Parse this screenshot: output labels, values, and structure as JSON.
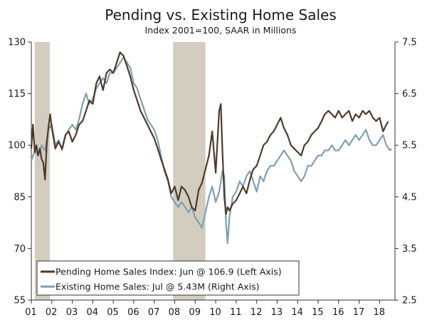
{
  "chart_data": {
    "type": "line",
    "title": "Pending vs. Existing Home Sales",
    "subtitle": "Index 2001=100, SAAR in Millions",
    "x_tick_labels": [
      "01",
      "02",
      "03",
      "04",
      "05",
      "06",
      "07",
      "08",
      "09",
      "10",
      "11",
      "12",
      "13",
      "14",
      "15",
      "16",
      "17",
      "18"
    ],
    "x_range": [
      2001.0,
      2018.75
    ],
    "left_axis": {
      "ticks": [
        55,
        70,
        85,
        100,
        115,
        130
      ],
      "range": [
        55,
        130
      ]
    },
    "right_axis": {
      "ticks": [
        2.5,
        3.5,
        4.5,
        5.5,
        6.5,
        7.5
      ],
      "range": [
        2.5,
        7.5
      ]
    },
    "recessions": [
      [
        2001.17,
        2001.9
      ],
      [
        2007.92,
        2009.5
      ]
    ],
    "series": [
      {
        "name": "Pending Home Sales Index",
        "legend": "Pending Home Sales Index: Jun @ 106.9 (Left Axis)",
        "axis": "left",
        "color": "#4e3a2c",
        "x": [
          2001.0,
          2001.08,
          2001.17,
          2001.25,
          2001.33,
          2001.42,
          2001.5,
          2001.58,
          2001.67,
          2001.75,
          2001.83,
          2001.92,
          2002.0,
          2002.17,
          2002.33,
          2002.5,
          2002.67,
          2002.83,
          2003.0,
          2003.17,
          2003.33,
          2003.5,
          2003.67,
          2003.83,
          2004.0,
          2004.17,
          2004.33,
          2004.5,
          2004.67,
          2004.83,
          2005.0,
          2005.17,
          2005.33,
          2005.5,
          2005.67,
          2005.83,
          2006.0,
          2006.17,
          2006.33,
          2006.5,
          2006.67,
          2006.83,
          2007.0,
          2007.17,
          2007.33,
          2007.5,
          2007.67,
          2007.83,
          2008.0,
          2008.17,
          2008.33,
          2008.5,
          2008.67,
          2008.83,
          2009.0,
          2009.17,
          2009.33,
          2009.5,
          2009.67,
          2009.83,
          2010.0,
          2010.17,
          2010.25,
          2010.33,
          2010.42,
          2010.5,
          2010.58,
          2010.67,
          2010.83,
          2011.0,
          2011.17,
          2011.33,
          2011.5,
          2011.67,
          2011.83,
          2012.0,
          2012.17,
          2012.33,
          2012.5,
          2012.67,
          2012.83,
          2013.0,
          2013.17,
          2013.33,
          2013.5,
          2013.67,
          2013.83,
          2014.0,
          2014.17,
          2014.33,
          2014.5,
          2014.67,
          2014.83,
          2015.0,
          2015.17,
          2015.33,
          2015.5,
          2015.67,
          2015.83,
          2016.0,
          2016.17,
          2016.33,
          2016.5,
          2016.67,
          2016.83,
          2017.0,
          2017.17,
          2017.33,
          2017.5,
          2017.67,
          2017.83,
          2018.0,
          2018.17,
          2018.33,
          2018.42
        ],
        "values": [
          99,
          106,
          98,
          100,
          97,
          99,
          96,
          95,
          90,
          100,
          105,
          109,
          105,
          99,
          101,
          99,
          103,
          104,
          101,
          103,
          106,
          107,
          110,
          113,
          112,
          118,
          120,
          116,
          121,
          122,
          121,
          124,
          127,
          126,
          123,
          120,
          116,
          113,
          110,
          108,
          106,
          104,
          102,
          99,
          96,
          93,
          90,
          86,
          88,
          84,
          88,
          87,
          85,
          82,
          81,
          87,
          89,
          93,
          97,
          104,
          92,
          110,
          112,
          98,
          85,
          80,
          82,
          81,
          83,
          84,
          86,
          88,
          86,
          90,
          93,
          94,
          97,
          100,
          101,
          103,
          104,
          106,
          108,
          105,
          103,
          100,
          99,
          98,
          97,
          100,
          101,
          103,
          104,
          105,
          107,
          109,
          110,
          109,
          108,
          110,
          108,
          109,
          110,
          107,
          109,
          108,
          110,
          109,
          110,
          108,
          107,
          108,
          104,
          106,
          106.9
        ]
      },
      {
        "name": "Existing Home Sales",
        "legend": "Existing Home Sales: Jul @ 5.43M (Right Axis)",
        "axis": "right",
        "color": "#7f9fb1",
        "x": [
          2001.0,
          2001.17,
          2001.33,
          2001.5,
          2001.67,
          2001.83,
          2002.0,
          2002.17,
          2002.33,
          2002.5,
          2002.67,
          2002.83,
          2003.0,
          2003.17,
          2003.33,
          2003.5,
          2003.67,
          2003.83,
          2004.0,
          2004.17,
          2004.33,
          2004.5,
          2004.67,
          2004.83,
          2005.0,
          2005.17,
          2005.33,
          2005.5,
          2005.67,
          2005.83,
          2006.0,
          2006.17,
          2006.33,
          2006.5,
          2006.67,
          2006.83,
          2007.0,
          2007.17,
          2007.33,
          2007.5,
          2007.67,
          2007.83,
          2008.0,
          2008.17,
          2008.33,
          2008.5,
          2008.67,
          2008.83,
          2009.0,
          2009.17,
          2009.33,
          2009.5,
          2009.67,
          2009.83,
          2010.0,
          2010.17,
          2010.33,
          2010.42,
          2010.5,
          2010.58,
          2010.67,
          2010.83,
          2011.0,
          2011.17,
          2011.33,
          2011.5,
          2011.67,
          2011.83,
          2012.0,
          2012.17,
          2012.33,
          2012.5,
          2012.67,
          2012.83,
          2013.0,
          2013.17,
          2013.33,
          2013.5,
          2013.67,
          2013.83,
          2014.0,
          2014.17,
          2014.33,
          2014.5,
          2014.67,
          2014.83,
          2015.0,
          2015.17,
          2015.33,
          2015.5,
          2015.67,
          2015.83,
          2016.0,
          2016.17,
          2016.33,
          2016.5,
          2016.67,
          2016.83,
          2017.0,
          2017.17,
          2017.33,
          2017.5,
          2017.67,
          2017.83,
          2018.0,
          2018.17,
          2018.33,
          2018.5,
          2018.58
        ],
        "values": [
          5.2,
          5.4,
          5.3,
          5.5,
          5.4,
          5.8,
          5.9,
          5.5,
          5.6,
          5.4,
          5.7,
          5.8,
          5.9,
          5.8,
          6.0,
          6.3,
          6.5,
          6.3,
          6.4,
          6.6,
          6.7,
          6.8,
          6.7,
          6.9,
          6.9,
          7.0,
          7.1,
          7.2,
          7.1,
          7.0,
          6.7,
          6.6,
          6.4,
          6.2,
          6.0,
          5.9,
          5.8,
          5.6,
          5.3,
          5.0,
          4.8,
          4.5,
          4.4,
          4.3,
          4.4,
          4.3,
          4.2,
          4.3,
          4.1,
          4.0,
          3.9,
          4.2,
          4.5,
          4.7,
          4.4,
          4.6,
          5.0,
          4.9,
          4.0,
          3.6,
          4.1,
          4.5,
          4.6,
          4.8,
          4.7,
          4.9,
          5.0,
          4.8,
          4.6,
          4.9,
          4.8,
          5.0,
          5.1,
          5.1,
          5.2,
          5.3,
          5.4,
          5.3,
          5.2,
          5.0,
          4.9,
          4.8,
          4.9,
          5.1,
          5.1,
          5.2,
          5.3,
          5.3,
          5.4,
          5.4,
          5.5,
          5.4,
          5.4,
          5.5,
          5.6,
          5.5,
          5.6,
          5.7,
          5.6,
          5.7,
          5.8,
          5.6,
          5.5,
          5.5,
          5.6,
          5.7,
          5.5,
          5.4,
          5.43
        ]
      }
    ]
  }
}
